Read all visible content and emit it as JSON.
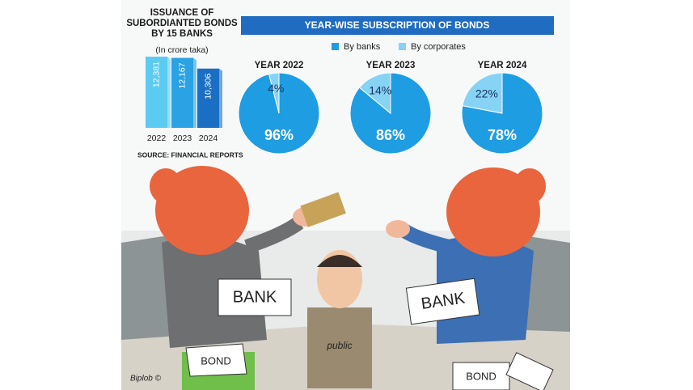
{
  "chart_data": [
    {
      "type": "bar",
      "title": "ISSUANCE OF SUBORDIANTED BONDS BY 15 BANKS",
      "subtitle": "(In crore taka)",
      "categories": [
        "2022",
        "2023",
        "2024"
      ],
      "values": [
        12381,
        12167,
        10306
      ],
      "value_labels": [
        "12,381",
        "12,167",
        "10,306"
      ],
      "colors": [
        "#5ccbf2",
        "#2aa2e4",
        "#1a6fc4"
      ]
    },
    {
      "type": "pie",
      "title": "YEAR-WISE SUBSCRIPTION OF BONDS",
      "categories": [
        "By banks",
        "By corporates"
      ],
      "colors": [
        "#1f9de2",
        "#86d3f6"
      ],
      "series": [
        {
          "name": "YEAR 2022",
          "values": [
            96,
            4
          ],
          "value_labels": [
            "96%",
            "4%"
          ]
        },
        {
          "name": "YEAR 2023",
          "values": [
            86,
            14
          ],
          "value_labels": [
            "86%",
            "14%"
          ]
        },
        {
          "name": "YEAR 2024",
          "values": [
            78,
            22
          ],
          "value_labels": [
            "78%",
            "22%"
          ]
        }
      ]
    }
  ],
  "source": "SOURCE: FINANCIAL REPORTS",
  "illustration": {
    "labels": [
      "BANK",
      "BANK",
      "BOND",
      "BOND",
      "public",
      "Biplob ©"
    ]
  }
}
